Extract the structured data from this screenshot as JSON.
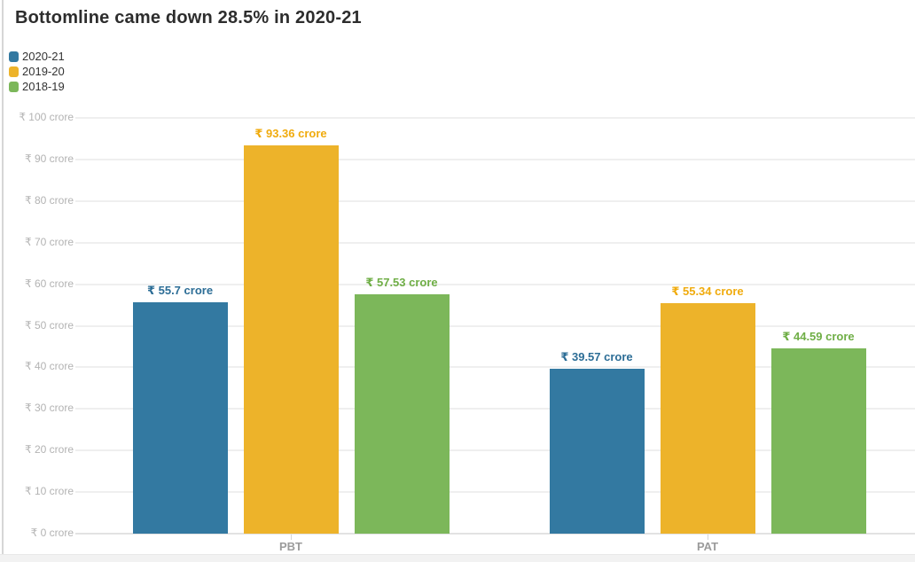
{
  "title": "Bottomline came down 28.5% in 2020-21",
  "legend": {
    "items": [
      {
        "label": "2020-21",
        "color": "#3379a1"
      },
      {
        "label": "2019-20",
        "color": "#edb32a"
      },
      {
        "label": "2018-19",
        "color": "#7cb75a"
      }
    ]
  },
  "chart_data": {
    "type": "bar",
    "title": "Bottomline came down 28.5% in 2020-21",
    "categories": [
      "PBT",
      "PAT"
    ],
    "series": [
      {
        "name": "2020-21",
        "values": [
          55.7,
          39.57
        ],
        "labels": [
          "₹ 55.7 crore",
          "₹ 39.57 crore"
        ],
        "color": "#3379a1",
        "label_color": "#2c6d96"
      },
      {
        "name": "2019-20",
        "values": [
          93.36,
          55.34
        ],
        "labels": [
          "₹ 93.36 crore",
          "₹ 55.34 crore"
        ],
        "color": "#edb32a",
        "label_color": "#f0ab0d"
      },
      {
        "name": "2018-19",
        "values": [
          57.53,
          44.59
        ],
        "labels": [
          "₹ 57.53 crore",
          "₹ 44.59 crore"
        ],
        "color": "#7cb75a",
        "label_color": "#6fae46"
      }
    ],
    "xlabel": "",
    "ylabel": "",
    "ylim": [
      0,
      100
    ],
    "y_ticks": [
      0,
      10,
      20,
      30,
      40,
      50,
      60,
      70,
      80,
      90,
      100
    ],
    "y_tick_label_format": "₹ {value} crore",
    "grid": true,
    "legend_position": "top-left",
    "colors": {
      "gridline": "#efefef",
      "zero_line": "#e2e2e2",
      "axis_label": "#b3b3b3",
      "category_label": "#9b9b9b"
    }
  }
}
